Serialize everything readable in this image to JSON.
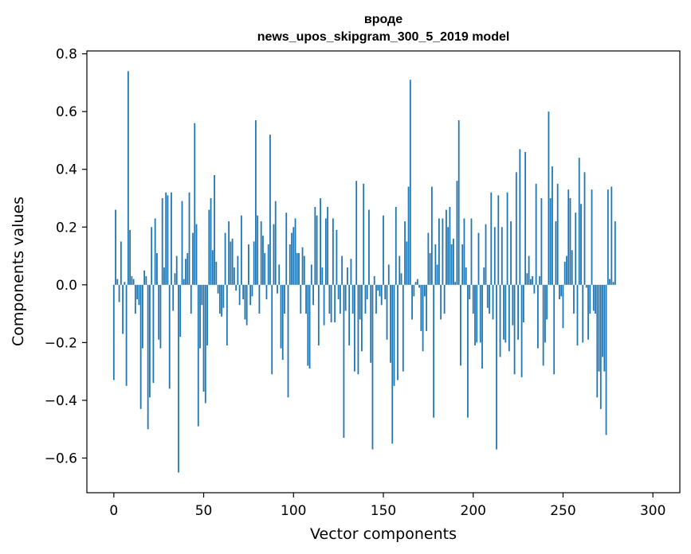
{
  "chart_data": {
    "type": "bar",
    "title_line1": "вроде",
    "title_line2": "news_upos_skipgram_300_5_2019 model",
    "xlabel": "Vector components",
    "ylabel": "Components values",
    "xlim": [
      -15,
      315
    ],
    "ylim": [
      -0.72,
      0.81
    ],
    "xticks": [
      0,
      50,
      100,
      150,
      200,
      250,
      300
    ],
    "yticks": [
      -0.6,
      -0.4,
      -0.2,
      0.0,
      0.2,
      0.4,
      0.6,
      0.8
    ],
    "ytick_labels": [
      "−0.6",
      "−0.4",
      "−0.2",
      "0.0",
      "0.2",
      "0.4",
      "0.6",
      "0.8"
    ],
    "values": [
      -0.33,
      0.26,
      0.02,
      -0.06,
      0.15,
      -0.17,
      0.01,
      -0.35,
      0.74,
      0.19,
      0.03,
      0.02,
      -0.1,
      -0.05,
      -0.07,
      -0.43,
      -0.22,
      0.05,
      0.03,
      -0.5,
      -0.39,
      0.2,
      -0.34,
      0.23,
      0.11,
      -0.19,
      -0.22,
      0.3,
      0.06,
      0.32,
      0.31,
      -0.36,
      0.32,
      -0.09,
      0.04,
      0.1,
      -0.65,
      -0.18,
      0.29,
      0.02,
      0.09,
      0.11,
      0.32,
      -0.1,
      0.18,
      0.56,
      0.21,
      -0.49,
      -0.22,
      -0.07,
      -0.37,
      -0.41,
      -0.21,
      0.26,
      0.3,
      0.12,
      0.38,
      0.08,
      -0.03,
      -0.1,
      -0.11,
      -0.08,
      0.18,
      -0.21,
      0.22,
      0.15,
      0.16,
      0.06,
      -0.02,
      0.1,
      -0.07,
      0.24,
      -0.05,
      -0.12,
      -0.14,
      0.14,
      -0.07,
      -0.04,
      0.15,
      0.57,
      0.24,
      -0.1,
      0.22,
      0.17,
      0.11,
      -0.05,
      0.14,
      0.52,
      -0.31,
      0.21,
      0.29,
      -0.03,
      0.07,
      -0.22,
      -0.26,
      -0.1,
      0.25,
      -0.39,
      0.14,
      0.18,
      0.2,
      0.23,
      0.11,
      0.11,
      -0.1,
      0.13,
      0.1,
      -0.1,
      -0.28,
      -0.29,
      0.07,
      -0.07,
      0.27,
      0.24,
      -0.21,
      0.3,
      0.06,
      -0.14,
      0.23,
      0.27,
      -0.1,
      -0.13,
      0.23,
      -0.13,
      0.19,
      -0.05,
      -0.1,
      0.1,
      -0.53,
      -0.09,
      0.06,
      -0.21,
      0.09,
      -0.1,
      -0.3,
      0.36,
      -0.31,
      -0.12,
      -0.23,
      0.35,
      -0.1,
      -0.05,
      0.26,
      -0.27,
      -0.57,
      0.03,
      -0.1,
      -0.02,
      -0.04,
      -0.07,
      0.24,
      -0.05,
      -0.19,
      0.07,
      -0.27,
      -0.55,
      -0.35,
      0.27,
      -0.33,
      0.1,
      0.04,
      -0.3,
      0.22,
      0.15,
      0.34,
      0.71,
      -0.12,
      -0.04,
      0.01,
      0.02,
      -0.01,
      -0.16,
      -0.23,
      -0.04,
      -0.16,
      0.18,
      0.11,
      0.34,
      -0.46,
      0.14,
      0.07,
      0.23,
      -0.12,
      0.23,
      -0.1,
      0.26,
      0.2,
      0.27,
      0.14,
      0.16,
      0.01,
      0.36,
      0.57,
      -0.28,
      0.14,
      0.23,
      0.06,
      -0.46,
      -0.05,
      0.23,
      -0.1,
      -0.21,
      -0.2,
      0.18,
      -0.2,
      -0.29,
      0.06,
      0.21,
      -0.08,
      -0.1,
      0.32,
      -0.12,
      0.2,
      -0.57,
      0.31,
      -0.25,
      0.2,
      -0.19,
      -0.2,
      0.32,
      -0.23,
      0.22,
      -0.14,
      -0.31,
      0.39,
      -0.19,
      0.47,
      -0.32,
      -0.13,
      0.46,
      0.04,
      0.1,
      0.02,
      0.03,
      -0.03,
      0.35,
      -0.22,
      0.03,
      0.3,
      -0.28,
      -0.2,
      -0.12,
      0.6,
      0.3,
      0.41,
      -0.31,
      0.22,
      0.35,
      -0.05,
      -0.04,
      -0.15,
      0.08,
      0.1,
      0.33,
      0.3,
      0.12,
      -0.1,
      0.25,
      -0.21,
      0.44,
      0.28,
      -0.2,
      0.39,
      -0.01,
      -0.19,
      -0.1,
      0.33,
      -0.09,
      -0.1,
      -0.39,
      -0.3,
      -0.43,
      -0.25,
      -0.3,
      -0.52,
      0.33,
      0.02,
      0.34,
      0.01,
      0.22
    ]
  }
}
